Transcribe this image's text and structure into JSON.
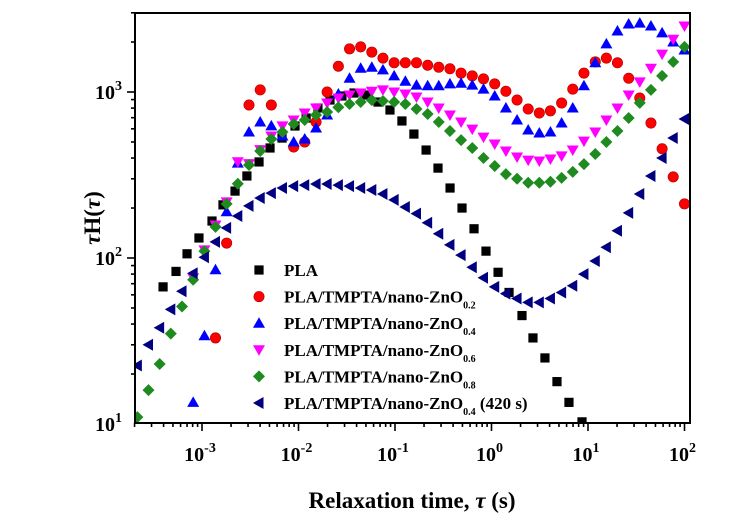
{
  "chart_data": {
    "type": "scatter",
    "x_scale": "log",
    "y_scale": "log",
    "xlabel_main": "Relaxation time, ",
    "xlabel_symbol": "τ",
    "xlabel_unit": " (s)",
    "ylabel_symbol": "τ",
    "ylabel_main": "H(",
    "ylabel_symbol2": "τ",
    "ylabel_close": ")",
    "xlim": [
      0.000205,
      105
    ],
    "ylim": [
      10,
      3000
    ],
    "x_ticks": [
      {
        "value": 0.001,
        "base": "10",
        "exp": "-3"
      },
      {
        "value": 0.01,
        "base": "10",
        "exp": "-2"
      },
      {
        "value": 0.1,
        "base": "10",
        "exp": "-1"
      },
      {
        "value": 1,
        "base": "10",
        "exp": "0"
      },
      {
        "value": 10,
        "base": "10",
        "exp": "1"
      },
      {
        "value": 100,
        "base": "10",
        "exp": "2"
      }
    ],
    "y_ticks": [
      {
        "value": 10,
        "base": "10",
        "exp": "1"
      },
      {
        "value": 100,
        "base": "10",
        "exp": "2"
      },
      {
        "value": 1000,
        "base": "10",
        "exp": "3"
      }
    ],
    "grid": false,
    "legend_placement": "bottom-center",
    "x_grid": [
      0.000214,
      0.000279,
      0.000364,
      0.000475,
      0.000621,
      0.00081,
      0.00106,
      0.00138,
      0.0018,
      0.00235,
      0.00307,
      0.00401,
      0.00523,
      0.00682,
      0.00891,
      0.0116,
      0.0152,
      0.0198,
      0.0259,
      0.0338,
      0.0441,
      0.0575,
      0.075,
      0.098,
      0.128,
      0.167,
      0.218,
      0.284,
      0.371,
      0.484,
      0.632,
      0.826,
      1.08,
      1.41,
      1.84,
      2.4,
      3.13,
      4.08,
      5.33,
      6.95,
      9.08,
      11.9,
      15.5,
      20.2,
      26.4,
      34.4,
      44.9,
      58.6,
      76.4,
      100
    ],
    "series": [
      {
        "label_main": "PLA",
        "label_sub": "",
        "label_suffix": "",
        "marker": "square",
        "color": "#000000",
        "x": [
          0.000395,
          0.000538,
          0.0007,
          0.00093,
          0.00127,
          0.00165,
          0.0022,
          0.00292,
          0.0039,
          0.00507,
          0.00675,
          0.0092,
          0.012,
          0.0159,
          0.0212,
          0.0282,
          0.0376,
          0.05,
          0.0667,
          0.0887,
          0.118,
          0.157,
          0.21,
          0.279,
          0.372,
          0.495,
          0.659,
          0.877,
          1.17,
          1.52,
          2.07,
          2.69,
          3.58,
          4.77,
          6.35,
          8.67
        ],
        "y": [
          67,
          83,
          106,
          132,
          167,
          209,
          253,
          312,
          379,
          460,
          528,
          624,
          697,
          801,
          895,
          946,
          986,
          959,
          870,
          779,
          669,
          558,
          447,
          348,
          264,
          200,
          150,
          110,
          82,
          62,
          45,
          33,
          25,
          18,
          13.5,
          10.3
        ]
      },
      {
        "label_main": "PLA/TMPTA/nano-ZnO",
        "label_sub": "0.2",
        "label_suffix": "",
        "marker": "circle",
        "color": "#ff0000",
        "y": [
          null,
          null,
          null,
          null,
          null,
          null,
          null,
          33,
          123,
          null,
          835,
          1030,
          835,
          null,
          466,
          500,
          660,
          1000,
          1430,
          1820,
          1870,
          1740,
          1600,
          1500,
          1500,
          1500,
          1450,
          1410,
          1380,
          1300,
          1250,
          1200,
          1120,
          1010,
          895,
          790,
          747,
          770,
          858,
          1040,
          1300,
          1520,
          1600,
          1500,
          1210,
          920,
          650,
          455,
          308,
          212
        ]
      },
      {
        "label_main": "PLA/TMPTA/nano-ZnO",
        "label_sub": "0.4",
        "label_suffix": "",
        "marker": "triangle-up",
        "color": "#0000ff",
        "y": [
          null,
          null,
          null,
          null,
          null,
          13.5,
          34,
          85,
          190,
          373,
          574,
          660,
          625,
          543,
          500,
          521,
          607,
          727,
          973,
          1210,
          1390,
          1410,
          1360,
          1250,
          1160,
          1100,
          1090,
          1090,
          1120,
          1130,
          1100,
          1040,
          946,
          801,
          678,
          590,
          566,
          574,
          650,
          801,
          1090,
          1500,
          1950,
          2330,
          2570,
          2600,
          2500,
          2270,
          2000,
          1790
        ]
      },
      {
        "label_main": "PLA/TMPTA/nano-ZnO",
        "label_sub": "0.6",
        "label_suffix": "",
        "marker": "triangle-down",
        "color": "#ff00ff",
        "y": [
          null,
          null,
          null,
          null,
          null,
          76,
          112,
          158,
          218,
          380,
          370,
          450,
          543,
          625,
          678,
          747,
          801,
          858,
          920,
          960,
          986,
          1010,
          1030,
          1000,
          973,
          933,
          870,
          801,
          727,
          660,
          598,
          535,
          486,
          441,
          406,
          389,
          384,
          395,
          412,
          447,
          506,
          574,
          678,
          801,
          960,
          1150,
          1390,
          1690,
          2080,
          2500
        ]
      },
      {
        "label_main": "PLA/TMPTA/nano-ZnO",
        "label_sub": "0.8",
        "label_suffix": "",
        "marker": "diamond",
        "color": "#1f8a1f",
        "y": [
          11,
          16,
          23,
          35,
          51,
          74,
          110,
          154,
          212,
          280,
          363,
          441,
          521,
          574,
          642,
          678,
          727,
          758,
          810,
          847,
          870,
          894,
          882,
          870,
          847,
          790,
          737,
          660,
          582,
          513,
          460,
          400,
          358,
          320,
          300,
          284,
          284,
          288,
          304,
          330,
          368,
          423,
          500,
          582,
          697,
          860,
          1030,
          1250,
          1520,
          1870
        ]
      },
      {
        "label_main": "PLA/TMPTA/nano-ZnO",
        "label_sub": "0.4",
        "label_suffix": " (420 s)",
        "marker": "triangle-left",
        "color": "#000080",
        "y": [
          22.5,
          30,
          38,
          49,
          63,
          81,
          101,
          125,
          152,
          179,
          206,
          230,
          246,
          264,
          271,
          275,
          279,
          279,
          275,
          271,
          264,
          257,
          243,
          224,
          203,
          185,
          163,
          140,
          120,
          104,
          88,
          76,
          67,
          61,
          57,
          54,
          54,
          57,
          62,
          68,
          80,
          96,
          116,
          146,
          187,
          243,
          312,
          400,
          528,
          688
        ]
      }
    ]
  }
}
